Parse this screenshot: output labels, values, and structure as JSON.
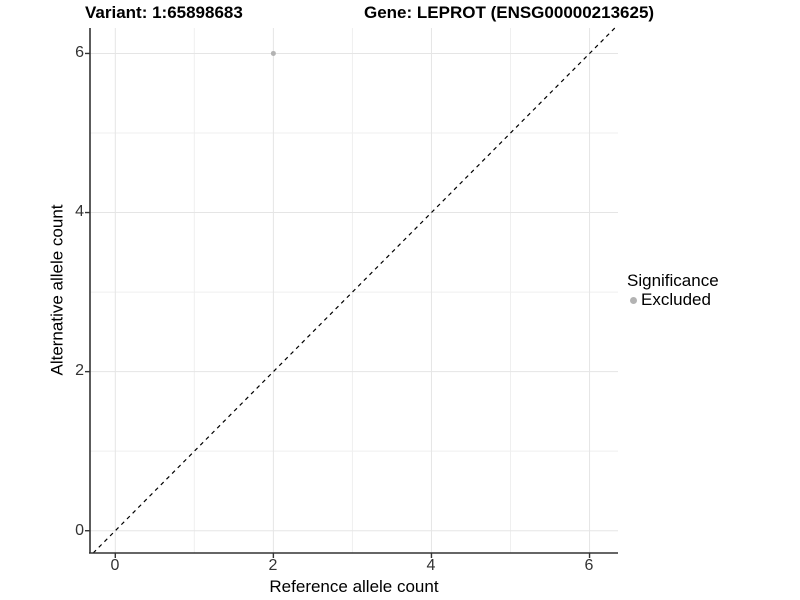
{
  "title_left": "Variant: 1:65898683",
  "title_right": "Gene: LEPROT (ENSG00000213625)",
  "x_axis": {
    "label": "Reference allele count",
    "ticks": [
      "0",
      "2",
      "4",
      "6"
    ]
  },
  "y_axis": {
    "label": "Alternative allele count",
    "ticks": [
      "0",
      "2",
      "4",
      "6"
    ]
  },
  "legend": {
    "title": "Significance",
    "items": [
      {
        "label": "Excluded",
        "color": "#b3b3b3"
      }
    ]
  },
  "colors": {
    "background": "#ffffff",
    "grid_major": "#e5e5e5",
    "grid_minor": "#efefef",
    "axis_line": "#333333",
    "tick_text": "#333333",
    "identity_line": "#000000",
    "point": "#b3b3b3"
  },
  "chart_data": {
    "type": "scatter",
    "title": "Variant: 1:65898683 — Gene: LEPROT (ENSG00000213625)",
    "xlabel": "Reference allele count",
    "ylabel": "Alternative allele count",
    "xlim": [
      -0.32,
      6.36
    ],
    "ylim": [
      -0.28,
      6.32
    ],
    "xticks": [
      0,
      2,
      4,
      6
    ],
    "yticks": [
      0,
      2,
      4,
      6
    ],
    "minor_ticks": [
      1,
      3,
      5
    ],
    "grid": true,
    "legend_position": "right",
    "legend_title": "Significance",
    "series": [
      {
        "name": "Excluded",
        "color": "#b3b3b3",
        "points": [
          [
            2,
            6
          ]
        ]
      }
    ],
    "reference_line": {
      "type": "identity",
      "slope": 1,
      "intercept": 0,
      "style": "dashed",
      "color": "#000000"
    }
  }
}
